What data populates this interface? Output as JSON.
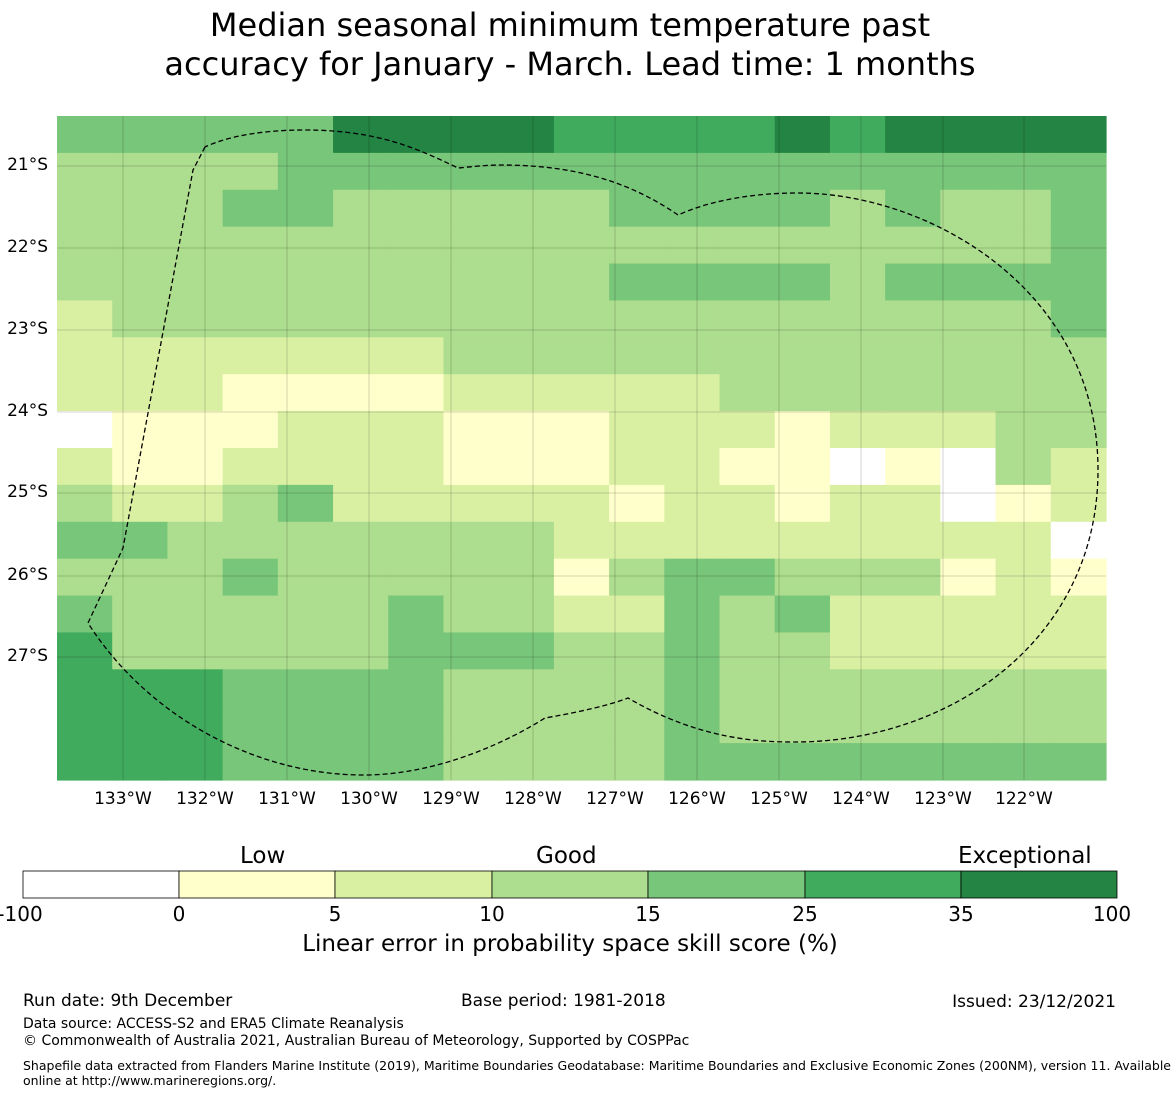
{
  "title": {
    "line1": "Median seasonal minimum temperature past",
    "line2": "accuracy for January - March. Lead time: 1 months"
  },
  "map": {
    "lat_labels": [
      "21°S",
      "22°S",
      "23°S",
      "24°S",
      "25°S",
      "26°S",
      "27°S"
    ],
    "lon_labels": [
      "133°W",
      "132°W",
      "131°W",
      "130°W",
      "129°W",
      "128°W",
      "127°W",
      "126°W",
      "125°W",
      "124°W",
      "123°W",
      "122°W"
    ],
    "grid_rows_skill_category": [
      [
        4,
        4,
        4,
        4,
        4,
        6,
        6,
        6,
        6,
        5,
        5,
        5,
        5,
        6,
        5,
        6,
        6,
        6,
        6
      ],
      [
        3,
        3,
        3,
        3,
        4,
        4,
        4,
        4,
        4,
        4,
        4,
        4,
        4,
        4,
        4,
        4,
        4,
        4,
        4
      ],
      [
        3,
        3,
        3,
        4,
        4,
        3,
        3,
        3,
        3,
        3,
        4,
        4,
        4,
        4,
        3,
        4,
        3,
        3,
        4
      ],
      [
        3,
        3,
        3,
        3,
        3,
        3,
        3,
        3,
        3,
        3,
        3,
        3,
        3,
        3,
        3,
        3,
        3,
        3,
        4
      ],
      [
        3,
        3,
        3,
        3,
        3,
        3,
        3,
        3,
        3,
        3,
        4,
        4,
        4,
        4,
        3,
        4,
        4,
        4,
        4
      ],
      [
        2,
        3,
        3,
        3,
        3,
        3,
        3,
        3,
        3,
        3,
        3,
        3,
        3,
        3,
        3,
        3,
        3,
        3,
        4
      ],
      [
        2,
        2,
        2,
        2,
        2,
        2,
        2,
        3,
        3,
        3,
        3,
        3,
        3,
        3,
        3,
        3,
        3,
        3,
        3
      ],
      [
        2,
        2,
        2,
        1,
        1,
        1,
        1,
        2,
        2,
        2,
        2,
        2,
        3,
        3,
        3,
        3,
        3,
        3,
        3
      ],
      [
        0,
        1,
        1,
        1,
        2,
        2,
        2,
        1,
        1,
        1,
        2,
        2,
        2,
        1,
        2,
        2,
        2,
        3,
        3
      ],
      [
        2,
        1,
        1,
        2,
        2,
        2,
        2,
        1,
        1,
        1,
        2,
        2,
        1,
        1,
        0,
        1,
        0,
        3,
        2
      ],
      [
        3,
        2,
        2,
        3,
        4,
        2,
        2,
        2,
        2,
        2,
        1,
        2,
        2,
        1,
        2,
        2,
        0,
        1,
        2
      ],
      [
        4,
        4,
        3,
        3,
        3,
        3,
        3,
        3,
        3,
        2,
        2,
        2,
        2,
        2,
        2,
        2,
        2,
        2,
        0
      ],
      [
        3,
        3,
        3,
        4,
        3,
        3,
        3,
        3,
        3,
        1,
        3,
        4,
        4,
        3,
        3,
        3,
        1,
        2,
        1
      ],
      [
        4,
        3,
        3,
        3,
        3,
        3,
        4,
        3,
        3,
        2,
        2,
        4,
        3,
        4,
        2,
        2,
        2,
        2,
        2
      ],
      [
        5,
        3,
        3,
        3,
        3,
        3,
        4,
        4,
        4,
        3,
        3,
        4,
        3,
        3,
        2,
        2,
        2,
        2,
        2
      ],
      [
        5,
        5,
        5,
        4,
        4,
        4,
        4,
        3,
        3,
        3,
        3,
        4,
        3,
        3,
        3,
        3,
        3,
        3,
        3
      ],
      [
        5,
        5,
        5,
        4,
        4,
        4,
        4,
        3,
        3,
        3,
        3,
        4,
        3,
        3,
        3,
        3,
        3,
        3,
        3
      ],
      [
        5,
        5,
        5,
        4,
        4,
        4,
        4,
        3,
        3,
        3,
        3,
        4,
        4,
        4,
        4,
        4,
        4,
        4,
        4
      ]
    ]
  },
  "legend": {
    "categories": [
      "Low",
      "Good",
      "Exceptional"
    ],
    "ticks": [
      "-100",
      "0",
      "5",
      "10",
      "15",
      "25",
      "35",
      "100"
    ],
    "colors": [
      "#ffffff",
      "#ffffcc",
      "#d9f0a3",
      "#addd8e",
      "#78c679",
      "#41ab5d",
      "#238443"
    ],
    "title": "Linear error in probability space skill score (%)"
  },
  "footer": {
    "run_date": "Run date: 9th December",
    "base_period": "Base period: 1981-2018",
    "issued": "Issued: 23/12/2021",
    "data_source": "Data source: ACCESS-S2 and ERA5 Climate Reanalysis",
    "copyright": "© Commonwealth of Australia 2021, Australian Bureau of Meteorology, Supported by COSPPac",
    "shapefile_line1": "Shapefile data extracted from Flanders Marine Institute (2019), Maritime Boundaries Geodatabase: Maritime Boundaries and Exclusive Economic Zones (200NM), version 11. Available",
    "shapefile_line2": "online at http://www.marineregions.org/."
  }
}
